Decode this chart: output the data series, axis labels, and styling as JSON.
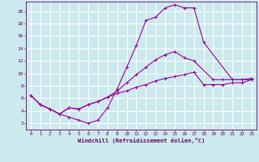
{
  "xlabel": "Windchill (Refroidissement éolien,°C)",
  "bg_color": "#cceaee",
  "grid_color": "#aadddd",
  "line_color": "#990099",
  "xlim": [
    -0.5,
    23.5
  ],
  "ylim": [
    1.0,
    21.5
  ],
  "xticks": [
    0,
    1,
    2,
    3,
    4,
    5,
    6,
    7,
    8,
    9,
    10,
    11,
    12,
    13,
    14,
    15,
    16,
    17,
    18,
    19,
    20,
    21,
    22,
    23
  ],
  "yticks": [
    2,
    4,
    6,
    8,
    10,
    12,
    14,
    16,
    18,
    20
  ],
  "line1_x": [
    0,
    1,
    2,
    3,
    4,
    5,
    6,
    7,
    8,
    9,
    10,
    11,
    12,
    13,
    14,
    15,
    16,
    17,
    18,
    21,
    22,
    23
  ],
  "line1_y": [
    6.5,
    5.0,
    4.3,
    3.5,
    3.0,
    2.5,
    2.0,
    2.5,
    4.5,
    7.5,
    11.0,
    14.5,
    18.5,
    19.0,
    20.5,
    21.0,
    20.5,
    20.5,
    15.0,
    9.0,
    9.0,
    9.0
  ],
  "line2_x": [
    0,
    1,
    2,
    3,
    4,
    5,
    6,
    7,
    8,
    9,
    10,
    11,
    12,
    13,
    14,
    15,
    16,
    17,
    19,
    20,
    21,
    22,
    23
  ],
  "line2_y": [
    6.5,
    5.0,
    4.3,
    3.5,
    4.5,
    4.3,
    5.0,
    5.5,
    6.2,
    7.2,
    8.5,
    9.8,
    11.0,
    12.2,
    13.0,
    13.5,
    12.5,
    12.0,
    9.0,
    9.0,
    9.0,
    9.0,
    9.2
  ],
  "line3_x": [
    0,
    1,
    2,
    3,
    4,
    5,
    6,
    7,
    8,
    9,
    10,
    11,
    12,
    13,
    14,
    15,
    16,
    17,
    18,
    19,
    20,
    21,
    22,
    23
  ],
  "line3_y": [
    6.5,
    5.0,
    4.3,
    3.5,
    4.5,
    4.3,
    5.0,
    5.5,
    6.2,
    6.8,
    7.2,
    7.8,
    8.2,
    8.8,
    9.2,
    9.5,
    9.8,
    10.2,
    8.2,
    8.2,
    8.2,
    8.5,
    8.5,
    9.0
  ]
}
